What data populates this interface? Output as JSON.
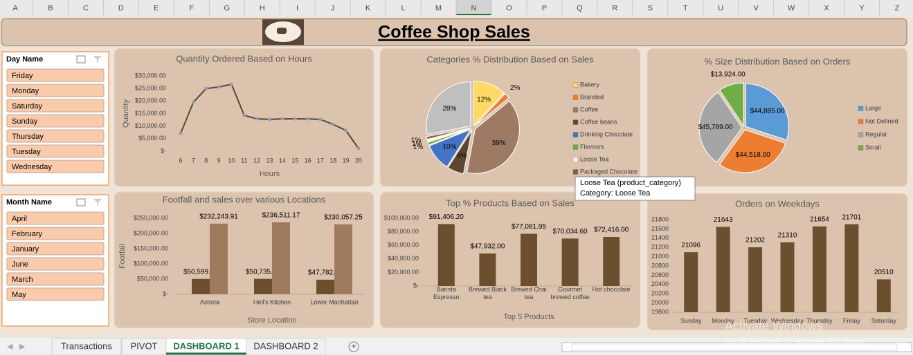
{
  "columns": [
    "A",
    "B",
    "C",
    "D",
    "E",
    "F",
    "G",
    "H",
    "I",
    "J",
    "K",
    "L",
    "M",
    "N",
    "O",
    "P",
    "Q",
    "R",
    "S",
    "T",
    "U",
    "V",
    "W",
    "X",
    "Y",
    "Z"
  ],
  "active_column": 13,
  "title": "Coffee Shop Sales",
  "slicers": [
    {
      "title": "Day Name",
      "items": [
        "Friday",
        "Monday",
        "Saturday",
        "Sunday",
        "Thursday",
        "Tuesday",
        "Wednesday"
      ]
    },
    {
      "title": "Month Name",
      "items": [
        "April",
        "February",
        "January",
        "June",
        "March",
        "May"
      ]
    }
  ],
  "tooltip": [
    "Loose Tea  (product_category)",
    "Category:  Loose Tea"
  ],
  "watermark": [
    "Activate Windows",
    "Go to Settings to activate Windows."
  ],
  "tabs": [
    "Transactions",
    "PIVOT",
    "DASHBOARD 1",
    "DASHBOARD 2"
  ],
  "active_tab": 2,
  "chart_data": [
    {
      "type": "line",
      "title": "Quantity Ordered Based on Hours",
      "x_label": "Hours",
      "y_label": "Quantity",
      "categories": [
        6,
        7,
        8,
        9,
        10,
        11,
        12,
        13,
        14,
        15,
        16,
        17,
        18,
        19,
        20
      ],
      "values": [
        7200,
        19500,
        25000,
        25600,
        26700,
        14300,
        12900,
        12700,
        12900,
        12900,
        12900,
        12700,
        10700,
        8300,
        1100
      ],
      "color": "#5c4630",
      "ylim": [
        0,
        30000
      ],
      "yticks": [
        {
          "value": 0,
          "label": "$-"
        },
        {
          "value": 5000,
          "label": "$5,000.00"
        },
        {
          "value": 10000,
          "label": "$10,000.00"
        },
        {
          "value": 15000,
          "label": "$15,000.00"
        },
        {
          "value": 20000,
          "label": "$20,000.00"
        },
        {
          "value": 25000,
          "label": "$25,000.00"
        },
        {
          "value": 30000,
          "label": "$30,000.00"
        }
      ]
    },
    {
      "type": "pie",
      "title": "Categories % Distribution Based on Sales",
      "categories": [
        "Bakery",
        "Branded",
        "Coffee",
        "Coffee beans",
        "Drinking Chocolate",
        "Flavours",
        "Loose Tea",
        "Packaged Chocolate",
        null
      ],
      "values": [
        12,
        2,
        39,
        6,
        10,
        1,
        1,
        1,
        28
      ],
      "value_labels": [
        "12%",
        "2%",
        "39%",
        "6%",
        "10%",
        "1%",
        "1%",
        "1%",
        "28%"
      ],
      "colors": [
        "#ffd966",
        "#ed7d31",
        "#9e7a64",
        "#5c4630",
        "#4472c4",
        "#70ad47",
        "#fbf3ea",
        "#8b5a3c",
        "#bfbfbf"
      ]
    },
    {
      "type": "pie",
      "title": "% Size Distribution Based on Orders",
      "categories": [
        "Large",
        "Not Defined",
        "Regular",
        "Small"
      ],
      "values": [
        44885,
        44518,
        45789,
        13924
      ],
      "value_labels": [
        "$44,885.00",
        "$44,518.00",
        "$45,789.00",
        "$13,924.00"
      ],
      "colors": [
        "#5b9bd5",
        "#ed7d31",
        "#a5a5a5",
        "#70ad47"
      ]
    },
    {
      "type": "bar",
      "title": "Footfall and sales over various Locations",
      "x_label": "Store Location",
      "y_label": "Footfall",
      "categories": [
        "Astoria",
        "Hell's Kitchen",
        "Lower Manhattan"
      ],
      "series": [
        {
          "color": "#6b4f2e",
          "values": [
            50599,
            50735,
            47782
          ],
          "value_labels": [
            "$50,599.00",
            "$50,735.00",
            "$47,782.00"
          ]
        },
        {
          "color": "#a07a5e",
          "values": [
            232243.91,
            236511.17,
            230057.25
          ],
          "value_labels": [
            "$232,243.91",
            "$236,511.17",
            "$230,057.25"
          ]
        }
      ],
      "ylim": [
        0,
        250000
      ],
      "yticks": [
        {
          "value": 0,
          "label": "$-"
        },
        {
          "value": 50000,
          "label": "$50,000.00"
        },
        {
          "value": 100000,
          "label": "$100,000.00"
        },
        {
          "value": 150000,
          "label": "$150,000.00"
        },
        {
          "value": 200000,
          "label": "$200,000.00"
        },
        {
          "value": 250000,
          "label": "$250,000.00"
        }
      ]
    },
    {
      "type": "bar",
      "title": "Top % Products Based on Sales",
      "x_label": "Top 5 Products",
      "categories": [
        "Barista Espresso",
        "Brewed Black tea",
        "Brewed Chai tea",
        "Gourmet brewed coffee",
        "Hot chocolate"
      ],
      "series": [
        {
          "color": "#6b4f2e",
          "values": [
            91406.2,
            47932,
            77081.95,
            70034.6,
            72416
          ],
          "value_labels": [
            "$91,406.20",
            "$47,932.00",
            "$77,081.95",
            "$70,034.60",
            "$72,416.00"
          ]
        }
      ],
      "ylim": [
        0,
        100000
      ],
      "yticks": [
        {
          "value": 0,
          "label": "$-"
        },
        {
          "value": 20000,
          "label": "$20,000.00"
        },
        {
          "value": 40000,
          "label": "$40,000.00"
        },
        {
          "value": 60000,
          "label": "$60,000.00"
        },
        {
          "value": 80000,
          "label": "$80,000.00"
        },
        {
          "value": 100000,
          "label": "$100,000.00"
        }
      ]
    },
    {
      "type": "bar",
      "title": "Orders on Weekdays",
      "categories": [
        "Sunday",
        "Monday",
        "Tuesday",
        "Wednesday",
        "Thursday",
        "Friday",
        "Saturday"
      ],
      "series": [
        {
          "color": "#6b4f2e",
          "values": [
            21096,
            21643,
            21202,
            21310,
            21654,
            21701,
            20510
          ]
        }
      ],
      "ylim": [
        19800,
        21800
      ],
      "yticks": [
        19800,
        20000,
        20200,
        20400,
        20600,
        20800,
        21000,
        21200,
        21400,
        21600,
        21800
      ]
    }
  ]
}
